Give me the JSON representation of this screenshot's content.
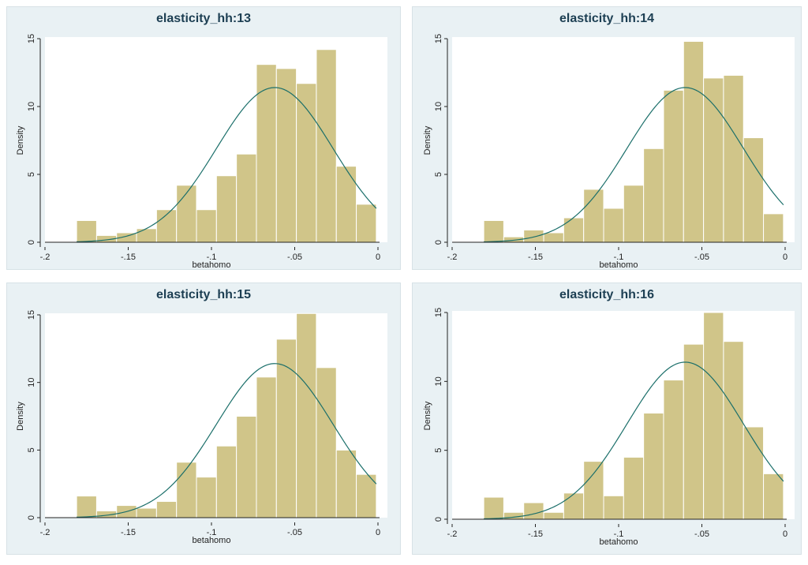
{
  "chart_data": [
    {
      "type": "bar",
      "title": "elasticity_hh:13",
      "xlabel": "betahomo",
      "ylabel": "Density",
      "xlim": [
        -0.2,
        0
      ],
      "ylim": [
        0,
        15
      ],
      "x_ticks": [
        -0.2,
        -0.15,
        -0.1,
        -0.05,
        0
      ],
      "x_tick_labels": [
        "-.2",
        "-.15",
        "-.1",
        "-.05",
        "0"
      ],
      "y_ticks": [
        0,
        5,
        10,
        15
      ],
      "y_tick_labels": [
        "0",
        "5",
        "10",
        "15"
      ],
      "bin_start": -0.181,
      "bin_width": 0.012,
      "values": [
        1.6,
        0.5,
        0.7,
        1.0,
        2.4,
        4.2,
        2.4,
        4.9,
        6.5,
        13.1,
        12.8,
        11.7,
        14.2,
        5.6,
        2.8
      ],
      "normal_curve": {
        "mean": -0.062,
        "sd": 0.035
      }
    },
    {
      "type": "bar",
      "title": "elasticity_hh:14",
      "xlabel": "betahomo",
      "ylabel": "Density",
      "xlim": [
        -0.2,
        0
      ],
      "ylim": [
        0,
        15
      ],
      "x_ticks": [
        -0.2,
        -0.15,
        -0.1,
        -0.05,
        0
      ],
      "x_tick_labels": [
        "-.2",
        "-.15",
        "-.1",
        "-.05",
        "0"
      ],
      "y_ticks": [
        0,
        5,
        10,
        15
      ],
      "y_tick_labels": [
        "0",
        "5",
        "10",
        "15"
      ],
      "bin_start": -0.181,
      "bin_width": 0.012,
      "values": [
        1.6,
        0.4,
        0.9,
        0.7,
        1.8,
        3.9,
        2.5,
        4.2,
        6.9,
        11.2,
        14.8,
        12.1,
        12.3,
        7.7,
        2.1
      ],
      "normal_curve": {
        "mean": -0.06,
        "sd": 0.035
      }
    },
    {
      "type": "bar",
      "title": "elasticity_hh:15",
      "xlabel": "betahomo",
      "ylabel": "Density",
      "xlim": [
        -0.2,
        0
      ],
      "ylim": [
        0,
        15
      ],
      "x_ticks": [
        -0.2,
        -0.15,
        -0.1,
        -0.05,
        0
      ],
      "x_tick_labels": [
        "-.2",
        "-.15",
        "-.1",
        "-.05",
        "0"
      ],
      "y_ticks": [
        0,
        5,
        10,
        15
      ],
      "y_tick_labels": [
        "0",
        "5",
        "10",
        "15"
      ],
      "bin_start": -0.181,
      "bin_width": 0.012,
      "values": [
        1.6,
        0.5,
        0.9,
        0.7,
        1.2,
        4.1,
        3.0,
        5.3,
        7.5,
        10.4,
        13.2,
        15.1,
        11.1,
        5.0,
        3.2
      ],
      "normal_curve": {
        "mean": -0.062,
        "sd": 0.035
      }
    },
    {
      "type": "bar",
      "title": "elasticity_hh:16",
      "xlabel": "betahomo",
      "ylabel": "Density",
      "xlim": [
        -0.2,
        0
      ],
      "ylim": [
        0,
        15
      ],
      "x_ticks": [
        -0.2,
        -0.15,
        -0.1,
        -0.05,
        0
      ],
      "x_tick_labels": [
        "-.2",
        "-.15",
        "-.1",
        "-.05",
        "0"
      ],
      "y_ticks": [
        0,
        5,
        10,
        15
      ],
      "y_tick_labels": [
        "0",
        "5",
        "10",
        "15"
      ],
      "bin_start": -0.181,
      "bin_width": 0.012,
      "values": [
        1.6,
        0.5,
        1.2,
        0.5,
        1.9,
        4.2,
        1.7,
        4.5,
        7.7,
        10.1,
        12.7,
        15.0,
        12.9,
        6.7,
        3.3
      ],
      "normal_curve": {
        "mean": -0.06,
        "sd": 0.035
      }
    }
  ]
}
